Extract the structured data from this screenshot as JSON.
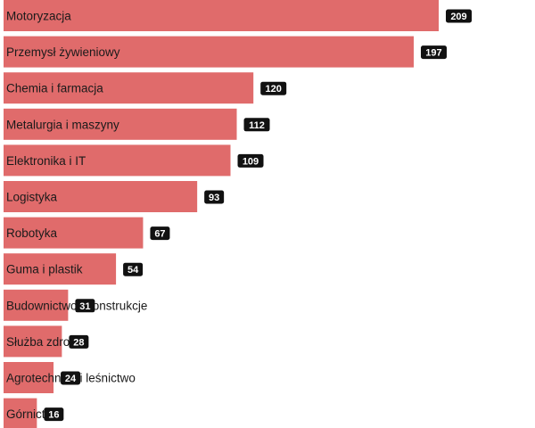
{
  "chart_data": {
    "type": "bar",
    "orientation": "horizontal",
    "categories": [
      "Motoryzacja",
      "Przemysł żywieniowy",
      "Chemia i farmacja",
      "Metalurgia i maszyny",
      "Elektronika i IT",
      "Logistyka",
      "Robotyka",
      "Guma i plastik",
      "Budownictwo i konstrukcje",
      "Służba zdrowia",
      "Agrotechnika i leśnictwo",
      "Górnictwo"
    ],
    "values": [
      209,
      197,
      120,
      112,
      109,
      93,
      67,
      54,
      31,
      28,
      24,
      16
    ],
    "title": "",
    "xlabel": "",
    "ylabel": "",
    "xlim": [
      0,
      209
    ],
    "grid": false,
    "legend": "none",
    "data_labels": true
  },
  "colors": {
    "bar": "#e06b6b",
    "value_badge": "#111111",
    "value_text": "#ffffff",
    "label_text": "#1a1a1a",
    "background": "#ffffff"
  }
}
